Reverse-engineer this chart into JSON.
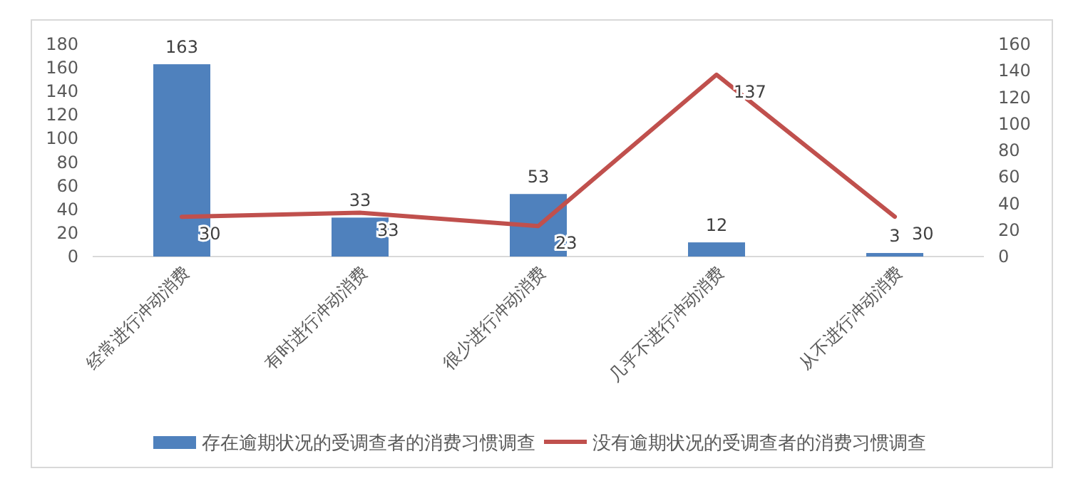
{
  "chart_data": {
    "type": "bar",
    "categories": [
      "经常进行冲动消费",
      "有时进行冲动消费",
      "很少进行冲动消费",
      "几乎不进行冲动消费",
      "从不进行冲动消费"
    ],
    "series": [
      {
        "name": "存在逾期状况的受调查者的消费习惯调查",
        "color": "#4f81bd",
        "values": [
          163,
          33,
          53,
          12,
          3
        ]
      },
      {
        "name": "没有逾期状况的受调查者的消费习惯调查",
        "type": "line",
        "axis": "y2",
        "color": "#c0504d",
        "values": [
          30,
          33,
          23,
          137,
          30
        ]
      }
    ],
    "ylim": [
      0,
      180
    ],
    "yticks": [
      0,
      20,
      40,
      60,
      80,
      100,
      120,
      140,
      160,
      180
    ],
    "y2lim": [
      0,
      160
    ],
    "y2ticks": [
      0,
      20,
      40,
      60,
      80,
      100,
      120,
      140,
      160
    ],
    "data_labels": true,
    "legend": "bottom",
    "marker": "none",
    "line_style": "solid"
  }
}
